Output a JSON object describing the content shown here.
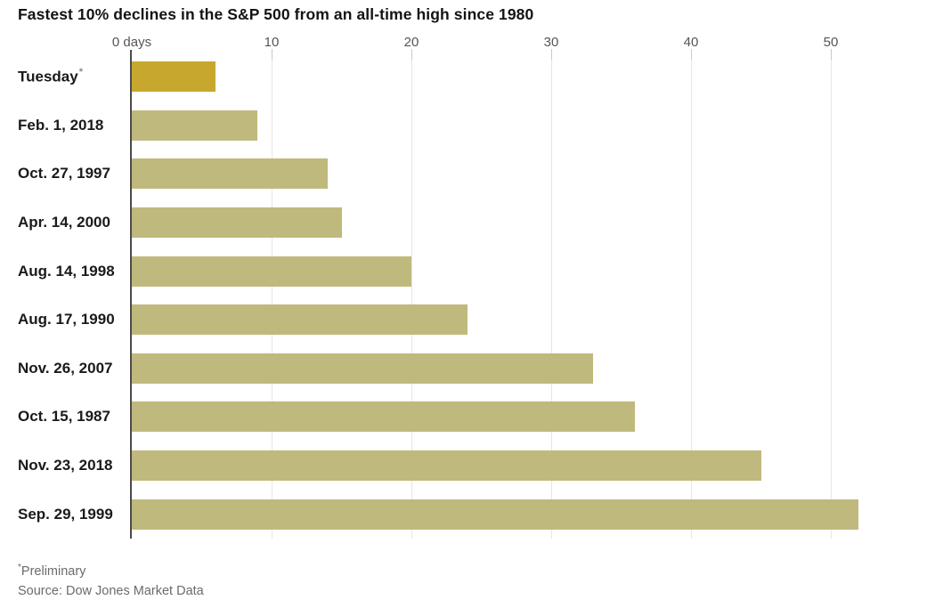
{
  "page": {
    "footnote_marker": "*",
    "footnote_text": "Preliminary",
    "source_text": "Source: Dow Jones Market Data"
  },
  "chart_data": {
    "type": "bar",
    "orientation": "horizontal",
    "title": "Fastest 10% declines in the S&P 500 from an all-time high since 1980",
    "categories": [
      {
        "label": "Tuesday",
        "marker": "*"
      },
      {
        "label": "Feb. 1, 2018",
        "marker": ""
      },
      {
        "label": "Oct. 27, 1997",
        "marker": ""
      },
      {
        "label": "Apr. 14, 2000",
        "marker": ""
      },
      {
        "label": "Aug. 14, 1998",
        "marker": ""
      },
      {
        "label": "Aug. 17, 1990",
        "marker": ""
      },
      {
        "label": "Nov. 26, 2007",
        "marker": ""
      },
      {
        "label": "Oct. 15, 1987",
        "marker": ""
      },
      {
        "label": "Nov. 23, 2018",
        "marker": ""
      },
      {
        "label": "Sep. 29, 1999",
        "marker": ""
      }
    ],
    "values": [
      6,
      9,
      14,
      15,
      20,
      24,
      33,
      36,
      45,
      52
    ],
    "value_unit": "days",
    "highlight_index": 0,
    "x_axis": {
      "ticks": [
        {
          "value": 0,
          "label": "0 days"
        },
        {
          "value": 10,
          "label": "10"
        },
        {
          "value": 20,
          "label": "20"
        },
        {
          "value": 30,
          "label": "30"
        },
        {
          "value": 40,
          "label": "40"
        },
        {
          "value": 50,
          "label": "50"
        }
      ],
      "range": [
        0,
        57
      ],
      "gridlines": true,
      "position": "top"
    },
    "legend": "none",
    "colors": {
      "bar": "#c0b97d",
      "bar_highlight": "#c8a72e",
      "gridline": "#e6e6e6",
      "tick_stub": "#c9c9c9",
      "axis_line": "#4b4b4d",
      "title_text": "#141414",
      "label_text": "#1a1a1a",
      "tick_text": "#555555",
      "footnote_text": "#6b6b6b"
    }
  }
}
